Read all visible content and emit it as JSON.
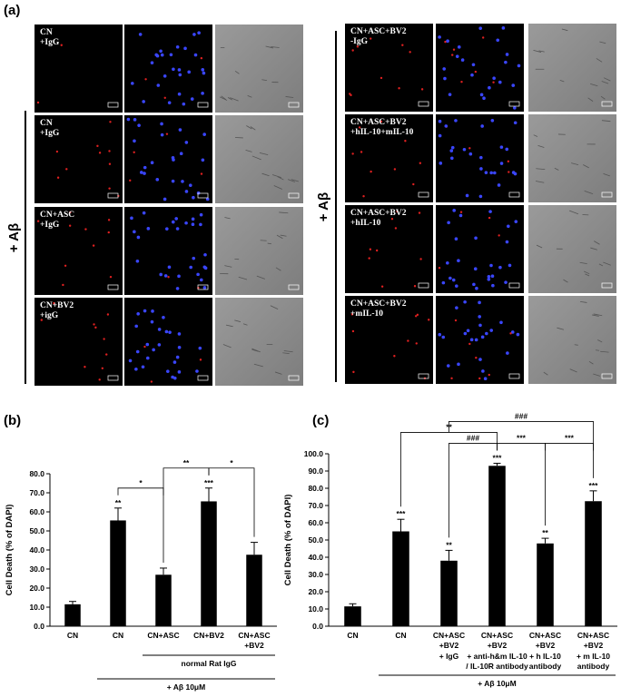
{
  "panel_a": {
    "label": "(a)",
    "left": {
      "group_label": "+ Aβ",
      "rows": [
        [
          "CN",
          "+IgG"
        ],
        [
          "CN",
          "+IgG"
        ],
        [
          "CN+ASC",
          "+IgG"
        ],
        [
          "CN+BV2",
          "+igG"
        ]
      ]
    },
    "right": {
      "group_label": "+ Aβ",
      "rows": [
        [
          "CN+ASC+BV2",
          "-IgG"
        ],
        [
          "CN+ASC+BV2",
          "+hIL-10+mIL-10"
        ],
        [
          "CN+ASC+BV2",
          "+hIL-10"
        ],
        [
          "CN+ASC+BV2",
          "+mIL-10"
        ]
      ]
    }
  },
  "chart_data": [
    {
      "type": "bar",
      "panel_label": "(b)",
      "y_label": "Cell Death (% of DAPI)",
      "color": "#000000",
      "categories": [
        [
          "CN"
        ],
        [
          "CN"
        ],
        [
          "CN+ASC"
        ],
        [
          "CN+BV2"
        ],
        [
          "CN+ASC",
          "+BV2"
        ]
      ],
      "values": [
        11.5,
        55.5,
        27,
        65.5,
        37.5
      ],
      "errors": [
        1.5,
        6.5,
        3.5,
        7,
        6.5
      ],
      "annotations": [
        null,
        "**",
        null,
        "***",
        null
      ],
      "brackets": [
        {
          "from": 1,
          "to": 2,
          "label": "*"
        },
        {
          "from": 2,
          "to": 3,
          "label": "**"
        },
        {
          "from": 3,
          "to": 4,
          "label": "*"
        }
      ],
      "groups": [
        {
          "label": "normal Rat IgG",
          "from": 2,
          "to": 4
        },
        {
          "label": "+ Aβ 10μM",
          "from": 1,
          "to": 4
        }
      ],
      "ylim": [
        0,
        80
      ],
      "yticks": [
        {
          "value": 0,
          "label": "0.0"
        },
        {
          "value": 10,
          "label": "10.0"
        },
        {
          "value": 20,
          "label": "20.0"
        },
        {
          "value": 30,
          "label": "30.0"
        },
        {
          "value": 40,
          "label": "40.0"
        },
        {
          "value": 50,
          "label": "50.0"
        },
        {
          "value": 60,
          "label": "60.0"
        },
        {
          "value": 70,
          "label": "70.0"
        },
        {
          "value": 80,
          "label": "80.0"
        }
      ]
    },
    {
      "type": "bar",
      "panel_label": "(c)",
      "y_label": "Cell Death (% of DAPI)",
      "color": "#000000",
      "categories": [
        [
          "CN"
        ],
        [
          "CN"
        ],
        [
          "CN+ASC",
          "+BV2"
        ],
        [
          "CN+ASC",
          "+BV2"
        ],
        [
          "CN+ASC",
          "+BV2"
        ],
        [
          "CN+ASC",
          "+BV2"
        ]
      ],
      "sublabels": [
        null,
        null,
        [
          "+ IgG"
        ],
        [
          "+ anti-h&m IL-10",
          "/ IL-10R antibody"
        ],
        [
          "+ h IL-10",
          "antibody"
        ],
        [
          "+ m IL-10",
          "antibody"
        ]
      ],
      "values": [
        11.5,
        55,
        38,
        93,
        48,
        72.5
      ],
      "errors": [
        1.5,
        7,
        6,
        1.5,
        3,
        6
      ],
      "annotations": [
        null,
        "***",
        "**",
        "***",
        "**",
        "***"
      ],
      "brackets": [
        {
          "from": 1,
          "to": 3,
          "label": "**"
        },
        {
          "from": 2,
          "to": 3,
          "label": "###"
        },
        {
          "from": 3,
          "to": 4,
          "label": "***"
        },
        {
          "from": 4,
          "to": 5,
          "label": "***"
        },
        {
          "from": 2,
          "to": 5,
          "label": "###"
        }
      ],
      "groups": [
        {
          "label": "+ Aβ 10μM",
          "from": 1,
          "to": 5
        }
      ],
      "ylim": [
        0,
        100
      ],
      "yticks": [
        {
          "value": 0,
          "label": "0.0"
        },
        {
          "value": 10,
          "label": "10.0"
        },
        {
          "value": 20,
          "label": "20.0"
        },
        {
          "value": 30,
          "label": "30.0"
        },
        {
          "value": 40,
          "label": "40.0"
        },
        {
          "value": 50,
          "label": "50.0"
        },
        {
          "value": 60,
          "label": "60.0"
        },
        {
          "value": 70,
          "label": "70.0"
        },
        {
          "value": 80,
          "label": "80.0"
        },
        {
          "value": 90,
          "label": "90.0"
        },
        {
          "value": 100,
          "label": "100.0"
        }
      ]
    }
  ]
}
